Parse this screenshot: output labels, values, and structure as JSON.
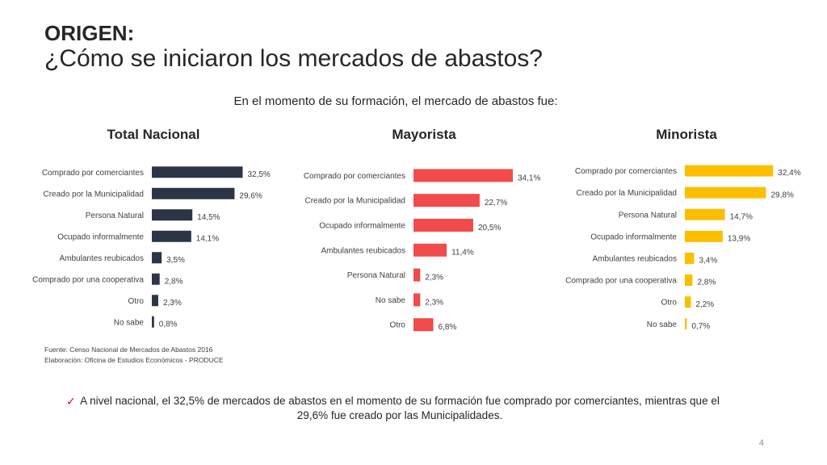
{
  "header": {
    "title_bold": "ORIGEN:",
    "title_main": "¿Cómo se iniciaron los mercados de abastos?"
  },
  "subtitle": "En el momento de su formación, el mercado de abastos fue:",
  "chart_data": [
    {
      "type": "bar",
      "orientation": "horizontal",
      "title": "Total Nacional",
      "color": "#2b3547",
      "categories": [
        "Comprado por comerciantes",
        "Creado por la Municipalidad",
        "Persona Natural",
        "Ocupado informalmente",
        "Ambulantes reubicados",
        "Comprado por una cooperativa",
        "Otro",
        "No sabe"
      ],
      "values": [
        32.5,
        29.6,
        14.5,
        14.1,
        3.5,
        2.8,
        2.3,
        0.8
      ],
      "value_labels": [
        "32,5%",
        "29,6%",
        "14,5%",
        "14,1%",
        "3,5%",
        "2,8%",
        "2,3%",
        "0,8%"
      ]
    },
    {
      "type": "bar",
      "orientation": "horizontal",
      "title": "Mayorista",
      "color": "#f24b4b",
      "categories": [
        "Comprado por comerciantes",
        "Creado por la Municipalidad",
        "Ocupado informalmente",
        "Ambulantes reubicados",
        "Persona Natural",
        "No sabe",
        "Otro"
      ],
      "values": [
        34.1,
        22.7,
        20.5,
        11.4,
        2.3,
        2.3,
        6.8
      ],
      "value_labels": [
        "34,1%",
        "22,7%",
        "20,5%",
        "11,4%",
        "2,3%",
        "2,3%",
        "6,8%"
      ]
    },
    {
      "type": "bar",
      "orientation": "horizontal",
      "title": "Minorista",
      "color": "#fcbf00",
      "categories": [
        "Comprado por comerciantes",
        "Creado por la Municipalidad",
        "Persona Natural",
        "Ocupado informalmente",
        "Ambulantes reubicados",
        "Comprado por una cooperativa",
        "Otro",
        "No sabe"
      ],
      "values": [
        32.4,
        29.8,
        14.7,
        13.9,
        3.4,
        2.8,
        2.2,
        0.7
      ],
      "value_labels": [
        "32,4%",
        "29,8%",
        "14,7%",
        "13,9%",
        "3,4%",
        "2,8%",
        "2,2%",
        "0,7%"
      ]
    }
  ],
  "source": {
    "line1": "Fuente: Censo Nacional de Mercados de Abastos 2016",
    "line2": "Elaboración: Oficina de Estudios Económicos - PRODUCE"
  },
  "note": "A nivel nacional, el 32,5% de mercados de abastos en el momento de su formación fue comprado por comerciantes, mientras que el 29,6% fue creado por las Municipalidades.",
  "page_number": "4",
  "icons": {
    "bullet": "check-icon"
  }
}
